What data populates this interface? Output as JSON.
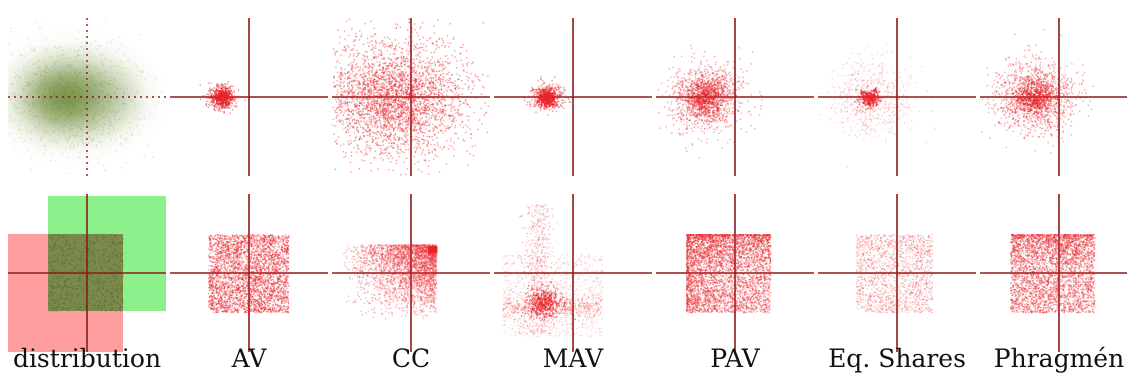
{
  "colors": {
    "axis": "#8b1a1a",
    "voters_green": "#5a7a1a",
    "region_red": "#ff9e9e",
    "region_green": "#8cf08c",
    "overlap": "#7a8a4a",
    "committee_red": "#e8232a"
  },
  "labels": [
    "distribution",
    "AV",
    "CC",
    "MAV",
    "PAV",
    "Eq. Shares",
    "Phragmén"
  ]
}
